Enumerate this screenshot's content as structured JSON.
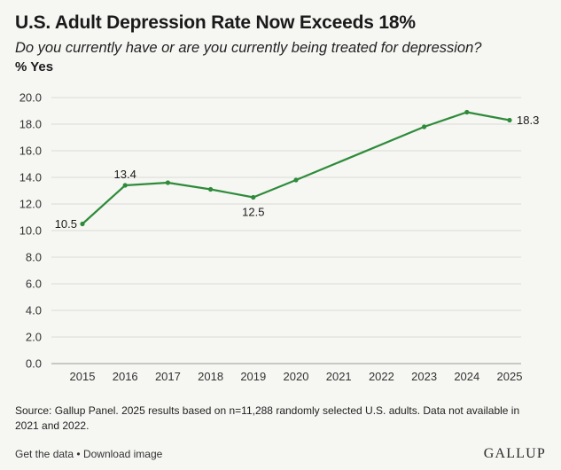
{
  "header": {
    "title": "U.S. Adult Depression Rate Now Exceeds 18%",
    "subtitle": "Do you currently have or are you currently being treated for depression?",
    "unit_label": "% Yes"
  },
  "chart_data": {
    "type": "line",
    "title": "U.S. Adult Depression Rate Now Exceeds 18%",
    "ylabel": "% Yes",
    "xlabel": "",
    "x_categories": [
      "2015",
      "2016",
      "2017",
      "2018",
      "2019",
      "2020",
      "2021",
      "2022",
      "2023",
      "2024",
      "2025"
    ],
    "y_ticks": [
      "0.0",
      "2.0",
      "4.0",
      "6.0",
      "8.0",
      "10.0",
      "12.0",
      "14.0",
      "16.0",
      "18.0",
      "20.0"
    ],
    "ylim": [
      0,
      20
    ],
    "grid": true,
    "series": [
      {
        "name": "% Yes",
        "color": "#2e8b3a",
        "points": [
          {
            "x": "2015",
            "y": 10.5
          },
          {
            "x": "2016",
            "y": 13.4
          },
          {
            "x": "2017",
            "y": 13.6
          },
          {
            "x": "2018",
            "y": 13.1
          },
          {
            "x": "2019",
            "y": 12.5
          },
          {
            "x": "2020",
            "y": 13.8
          },
          {
            "x": "2023",
            "y": 17.8
          },
          {
            "x": "2024",
            "y": 18.9
          },
          {
            "x": "2025",
            "y": 18.3
          }
        ]
      }
    ],
    "data_labels": [
      {
        "x": "2015",
        "text": "10.5",
        "side": "left"
      },
      {
        "x": "2016",
        "text": "13.4",
        "side": "above"
      },
      {
        "x": "2019",
        "text": "12.5",
        "side": "below"
      },
      {
        "x": "2025",
        "text": "18.3",
        "side": "right"
      }
    ]
  },
  "footer": {
    "source_line_1": "Source: Gallup Panel. 2025 results based on n=11,288 randomly selected U.S. adults. Data not available in",
    "source_line_2": "2021 and 2022.",
    "get_data_link": "Get the data",
    "separator": "•",
    "download_link": "Download image",
    "brand": "GALLUP"
  },
  "colors": {
    "background": "#f6f6f3",
    "line": "#2e8b3a",
    "grid": "#d9d9d5",
    "text": "#1a1a1a"
  }
}
